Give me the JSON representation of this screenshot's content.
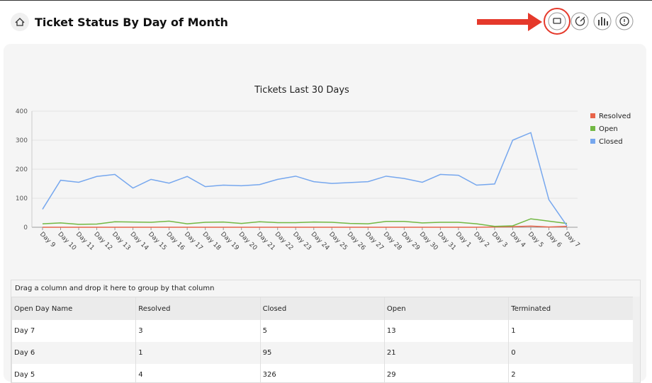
{
  "header": {
    "title": "Ticket Status By Day of Month"
  },
  "chart_data": {
    "type": "line",
    "title": "Tickets Last 30 Days",
    "categories": [
      "Day 9",
      "Day 10",
      "Day 11",
      "Day 12",
      "Day 13",
      "Day 14",
      "Day 15",
      "Day 16",
      "Day 17",
      "Day 18",
      "Day 19",
      "Day 20",
      "Day 21",
      "Day 22",
      "Day 23",
      "Day 24",
      "Day 25",
      "Day 26",
      "Day 27",
      "Day 28",
      "Day 29",
      "Day 30",
      "Day 31",
      "Day 1",
      "Day 2",
      "Day 3",
      "Day 4",
      "Day 5",
      "Day 6",
      "Day 7"
    ],
    "series": [
      {
        "name": "Resolved",
        "color": "#e8644a",
        "values": [
          0,
          0,
          0,
          0,
          0,
          0,
          0,
          0,
          0,
          0,
          0,
          0,
          0,
          0,
          0,
          0,
          0,
          0,
          0,
          0,
          0,
          0,
          0,
          0,
          0,
          1,
          2,
          4,
          1,
          3
        ]
      },
      {
        "name": "Open",
        "color": "#72b843",
        "values": [
          12,
          15,
          10,
          11,
          19,
          18,
          17,
          21,
          12,
          17,
          18,
          13,
          19,
          16,
          16,
          18,
          17,
          13,
          12,
          20,
          20,
          15,
          17,
          17,
          12,
          3,
          5,
          29,
          21,
          13
        ]
      },
      {
        "name": "Closed",
        "color": "#76a7ee",
        "values": [
          62,
          162,
          155,
          175,
          182,
          135,
          165,
          152,
          175,
          140,
          145,
          143,
          147,
          165,
          176,
          157,
          151,
          154,
          157,
          176,
          168,
          155,
          182,
          179,
          145,
          149,
          300,
          326,
          95,
          5
        ]
      }
    ],
    "ylim": [
      0,
      400
    ],
    "yticks": [
      0,
      100,
      200,
      300,
      400
    ],
    "grid": true,
    "legend": "right"
  },
  "table": {
    "group_panel": "Drag a column and drop it here to group by that column",
    "columns": [
      "Open Day Name",
      "Resolved",
      "Closed",
      "Open",
      "Terminated"
    ],
    "rows": [
      [
        "Day 7",
        3,
        5,
        13,
        1
      ],
      [
        "Day 6",
        1,
        95,
        21,
        0
      ],
      [
        "Day 5",
        4,
        326,
        29,
        2
      ]
    ]
  }
}
